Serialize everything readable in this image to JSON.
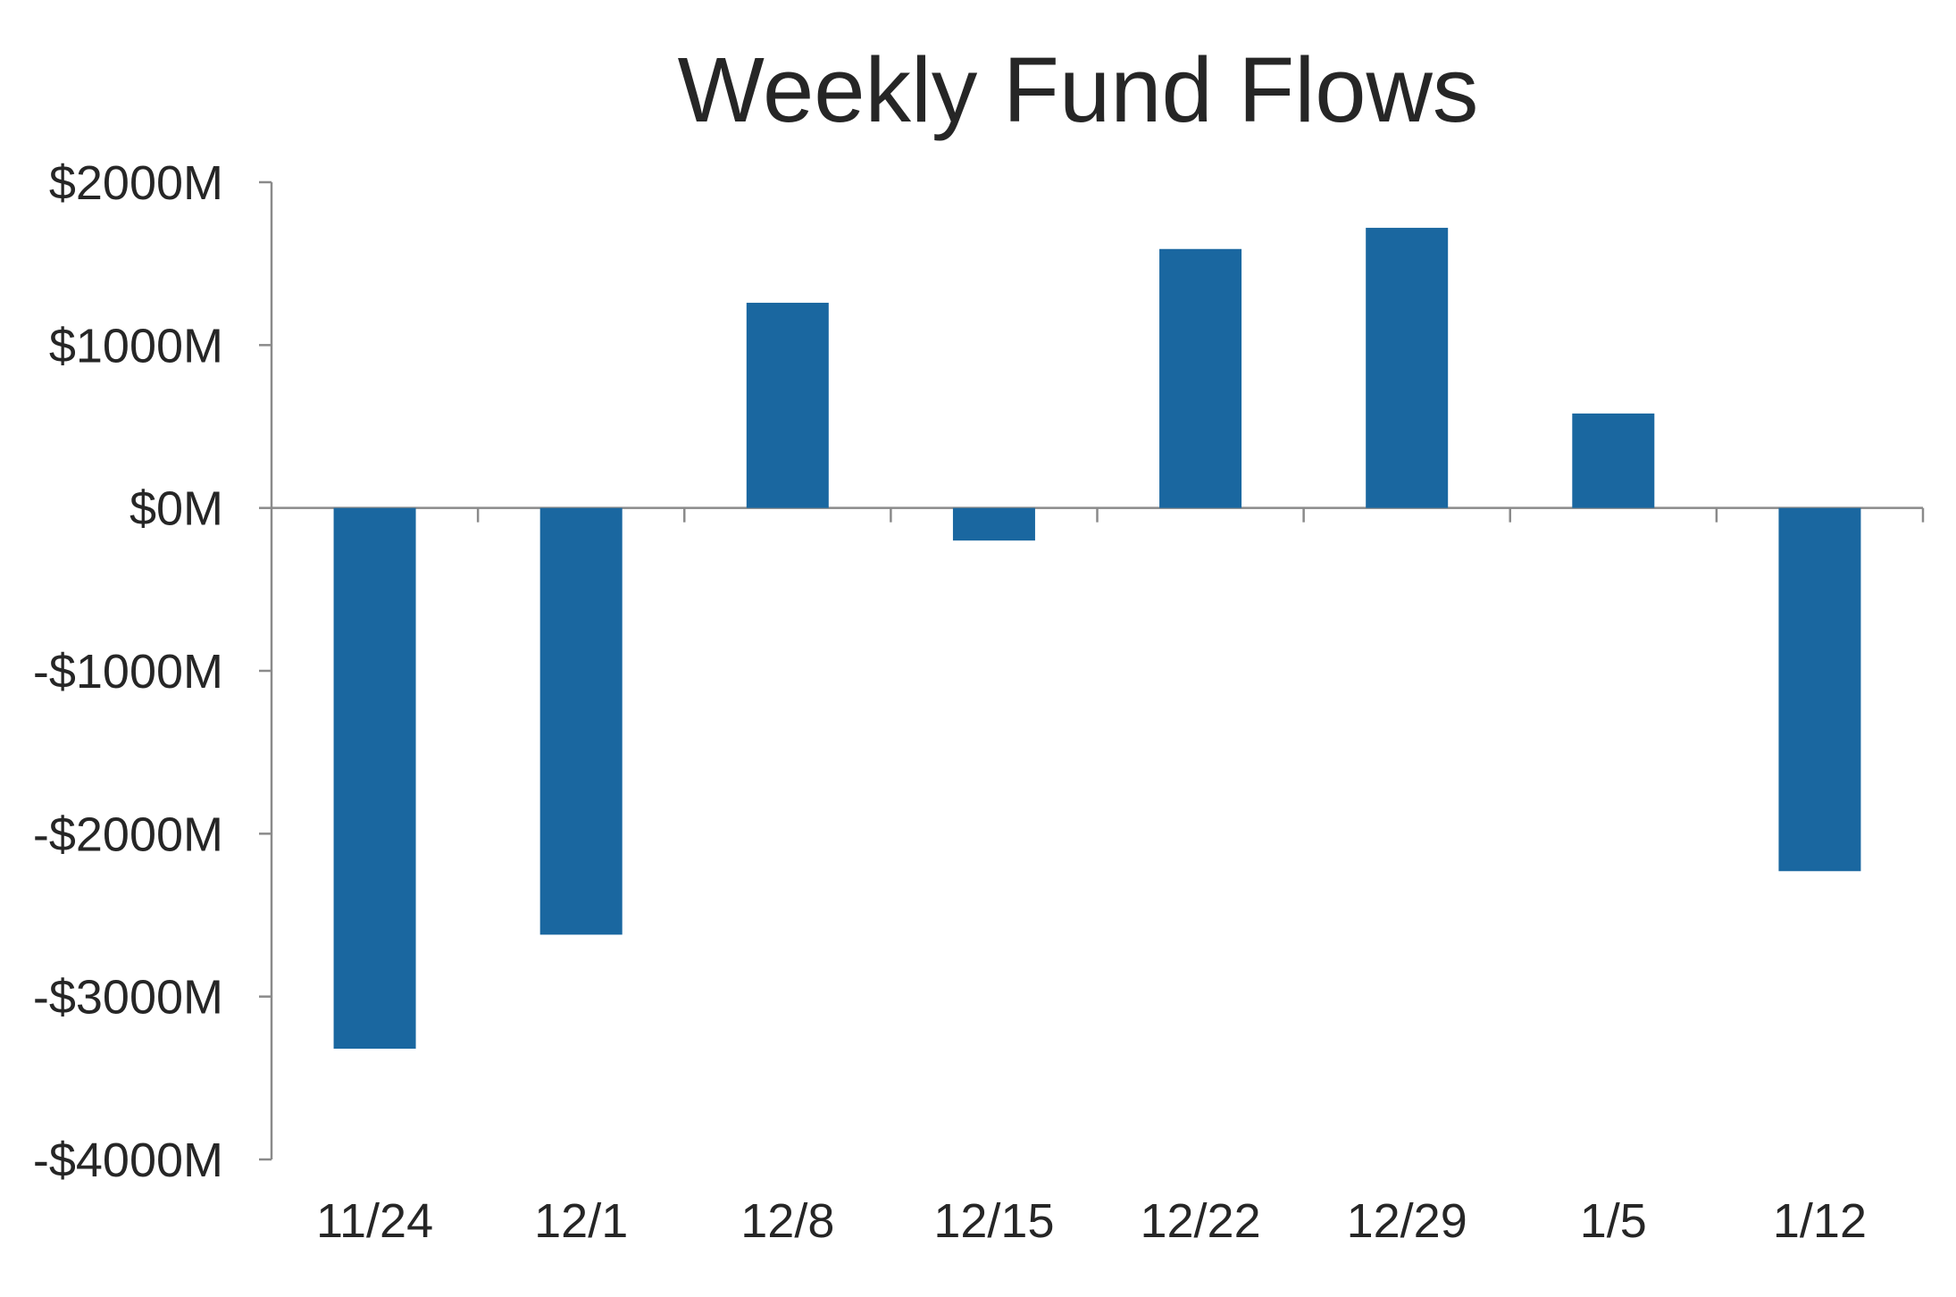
{
  "chart_data": {
    "type": "bar",
    "title": "Weekly Fund Flows",
    "xlabel": "",
    "ylabel": "",
    "categories": [
      "11/24",
      "12/1",
      "12/8",
      "12/15",
      "12/22",
      "12/29",
      "1/5",
      "1/12"
    ],
    "values": [
      -3320,
      -2620,
      1260,
      -200,
      1590,
      1720,
      580,
      -2230
    ],
    "unit": "$M",
    "ylim": [
      -4000,
      2000
    ],
    "yticks": [
      2000,
      1000,
      0,
      -1000,
      -2000,
      -3000,
      -4000
    ],
    "ytick_labels": [
      "$2000M",
      "$1000M",
      "$0M",
      "-$1000M",
      "-$2000M",
      "-$3000M",
      "-$4000M"
    ],
    "grid": false,
    "legend": "none",
    "colors": {
      "bar": "#1a67a0",
      "axis": "#8a8a8a",
      "text": "#262626"
    }
  }
}
